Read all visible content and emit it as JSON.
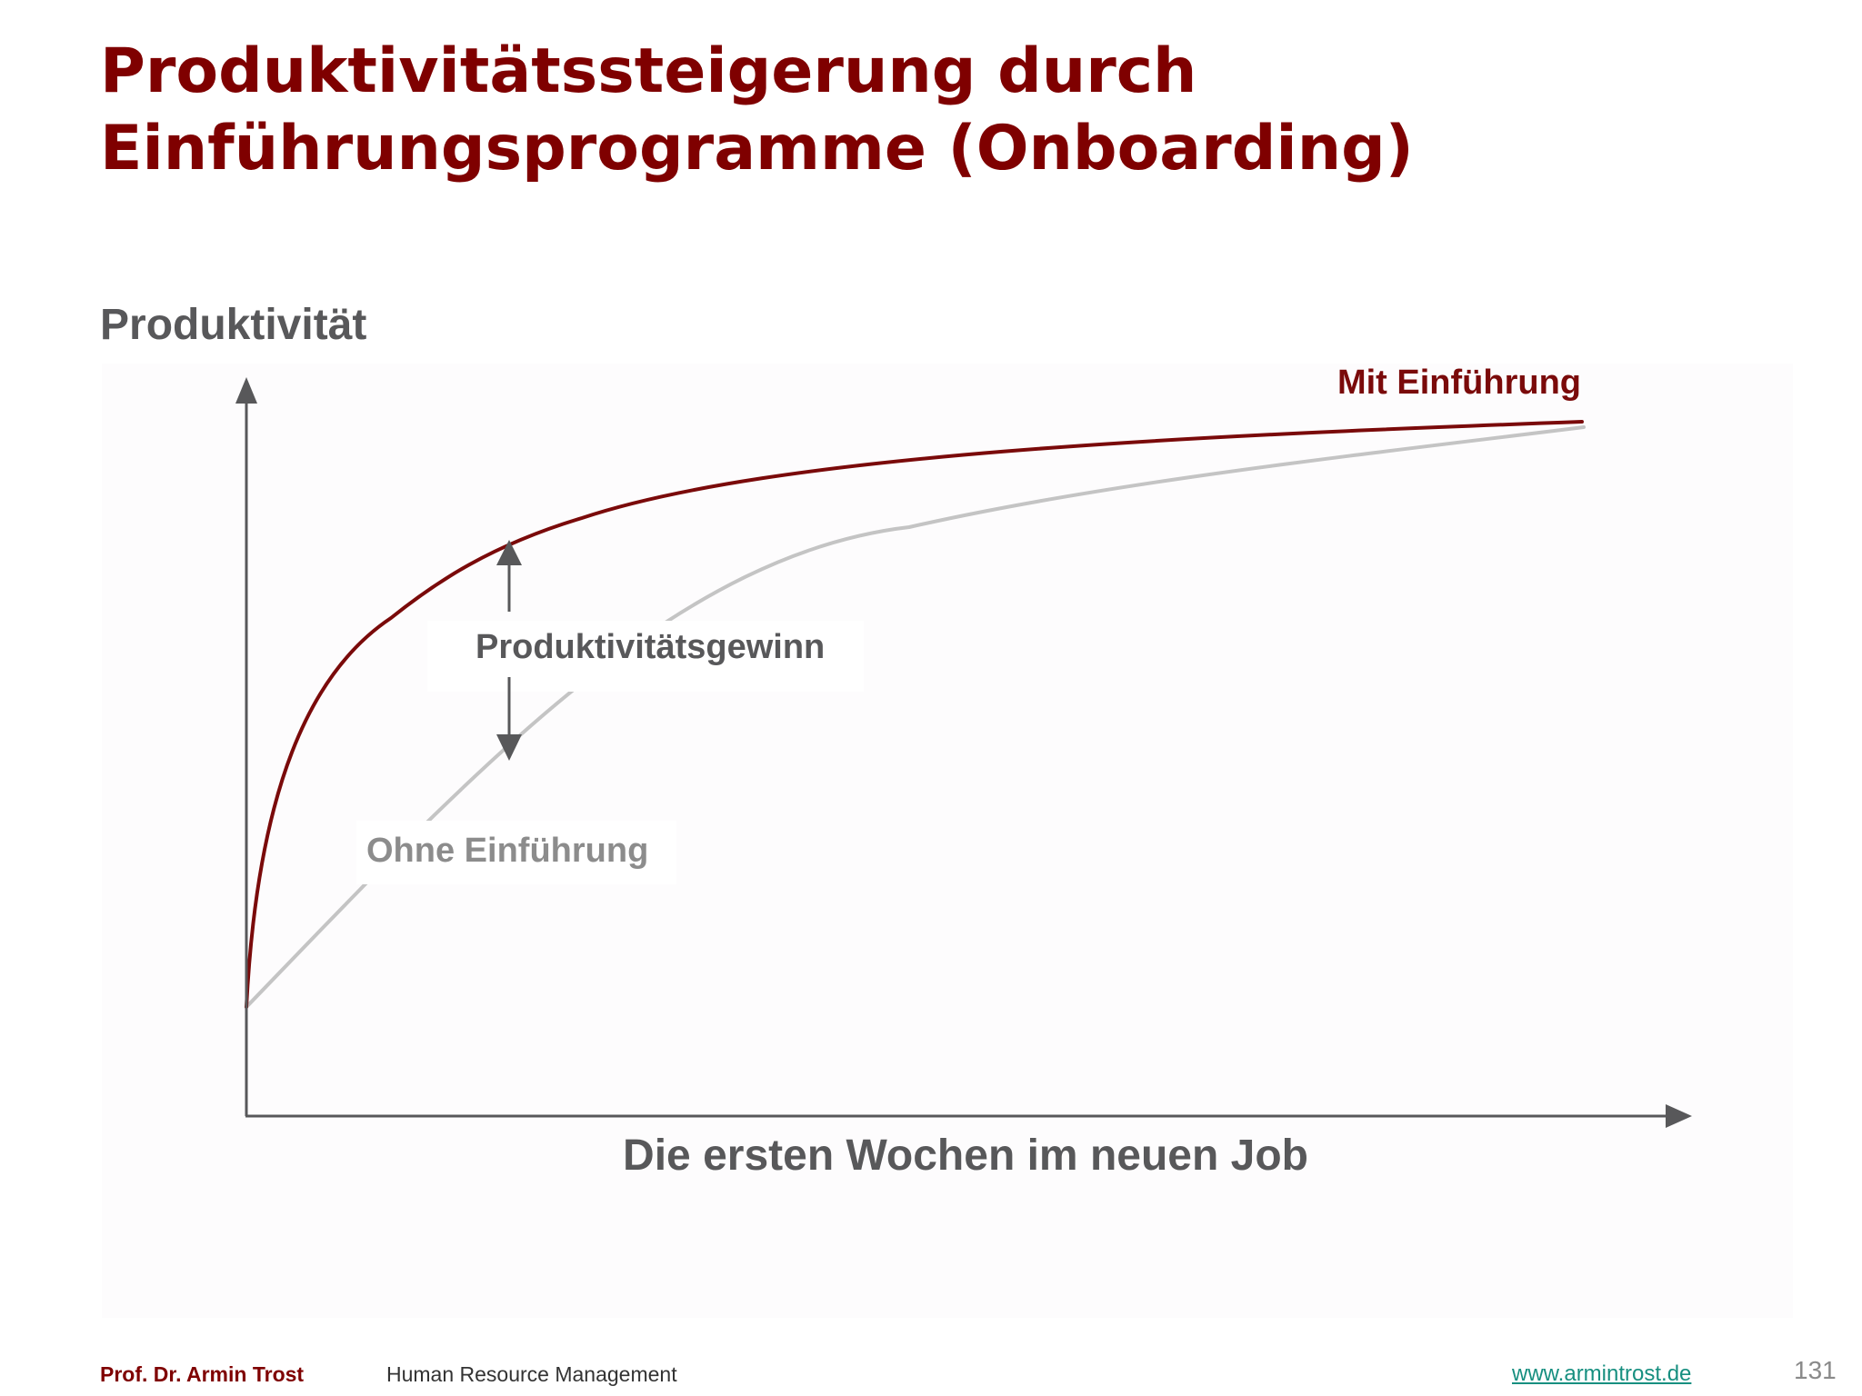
{
  "slide": {
    "title_line1": "Produktivitätssteigerung durch",
    "title_line2": "Einführungsprogramme (Onboarding)"
  },
  "diagram": {
    "y_axis_label": "Produktivität",
    "x_axis_label": "Die ersten Wochen im neuen Job",
    "curve_with_label": "Mit Einführung",
    "curve_without_label": "Ohne Einführung",
    "gap_label": "Produktivitätsgewinn",
    "colors": {
      "with": "#7a0a0a",
      "without": "#c4c4c4",
      "axis": "#58585a",
      "gap_arrow": "#58585a"
    }
  },
  "footer": {
    "author": "Prof. Dr. Armin Trost",
    "course": "Human Resource Management",
    "website": "www.armintrost.de",
    "page_number": "131"
  }
}
